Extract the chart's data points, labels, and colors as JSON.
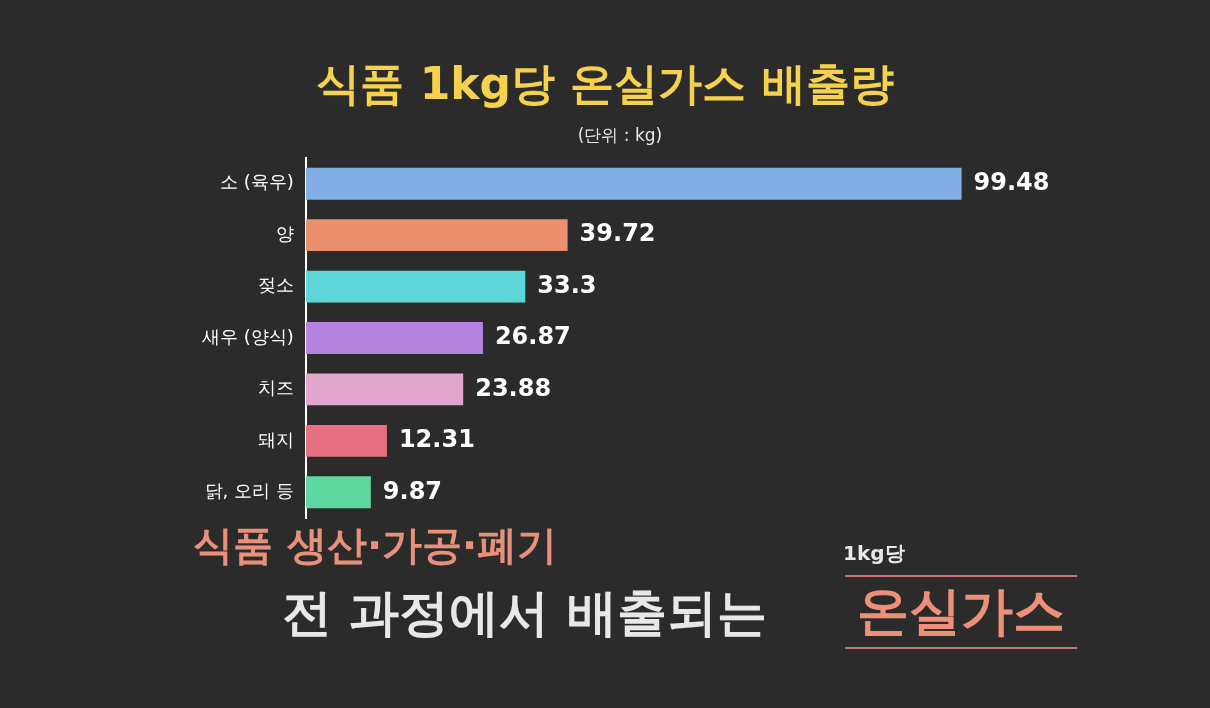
{
  "chart_data": {
    "type": "bar",
    "orientation": "horizontal",
    "title": "식품 1kg당 온실가스 배출량",
    "subtitle": "(단위 : kg)",
    "categories": [
      "소 (육우)",
      "양",
      "젖소",
      "새우 (양식)",
      "치즈",
      "돼지",
      "닭, 오리 등"
    ],
    "values": [
      99.48,
      39.72,
      33.3,
      26.87,
      23.88,
      12.31,
      9.87
    ],
    "colors": [
      "#84aee6",
      "#ec8f6c",
      "#5ed6d8",
      "#b682e0",
      "#e2a6cc",
      "#e66f80",
      "#5ed8a0"
    ],
    "data_labels": true,
    "legend": false,
    "annotations": [
      "식품 생산·가공·폐기",
      "전 과정에서 배출되는",
      "1kg당",
      "온실가스"
    ]
  }
}
